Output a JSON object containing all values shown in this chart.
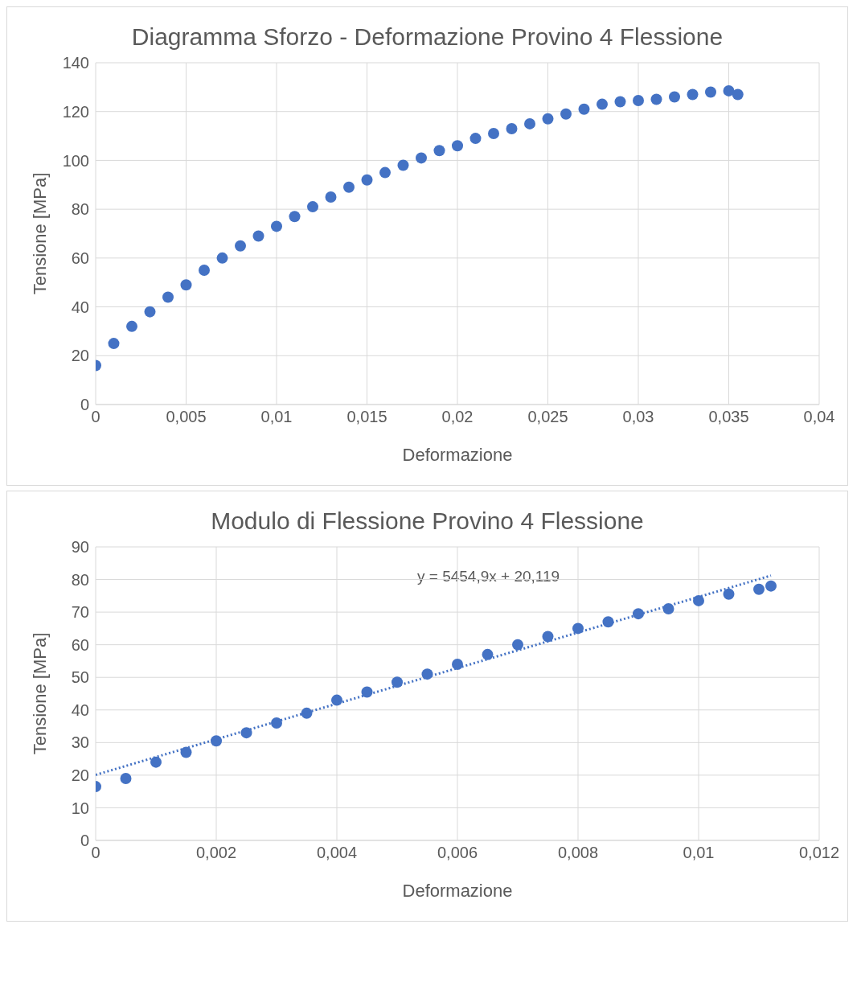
{
  "chart_data": [
    {
      "type": "scatter",
      "title": "Diagramma Sforzo - Deformazione Provino 4 Flessione",
      "xlabel": "Deformazione",
      "ylabel": "Tensione [MPa]",
      "xlim": [
        0,
        0.04
      ],
      "ylim": [
        0,
        140
      ],
      "xticks": [
        0,
        {
          "value": 0.005,
          "label": "0,005"
        },
        {
          "value": 0.01,
          "label": "0,01"
        },
        {
          "value": 0.015,
          "label": "0,015"
        },
        {
          "value": 0.02,
          "label": "0,02"
        },
        {
          "value": 0.025,
          "label": "0,025"
        },
        {
          "value": 0.03,
          "label": "0,03"
        },
        {
          "value": 0.035,
          "label": "0,035"
        },
        {
          "value": 0.04,
          "label": "0,04"
        }
      ],
      "yticks": [
        0,
        20,
        40,
        60,
        80,
        100,
        120,
        140
      ],
      "grid": true,
      "marker": "circle",
      "series": [
        {
          "color": "#4472c4",
          "x": [
            0,
            0.001,
            0.002,
            0.003,
            0.004,
            0.005,
            0.006,
            0.007,
            0.008,
            0.009,
            0.01,
            0.011,
            0.012,
            0.013,
            0.014,
            0.015,
            0.016,
            0.017,
            0.018,
            0.019,
            0.02,
            0.021,
            0.022,
            0.023,
            0.024,
            0.025,
            0.026,
            0.027,
            0.028,
            0.029,
            0.03,
            0.031,
            0.032,
            0.033,
            0.034,
            0.035,
            0.0355
          ],
          "values": [
            16,
            25,
            32,
            38,
            44,
            49,
            55,
            60,
            65,
            69,
            73,
            77,
            81,
            85,
            89,
            92,
            95,
            98,
            101,
            104,
            106,
            109,
            111,
            113,
            115,
            117,
            119,
            121,
            123,
            124,
            124.5,
            125,
            126,
            127,
            128,
            128.5,
            127
          ]
        }
      ]
    },
    {
      "type": "scatter",
      "title": "Modulo di Flessione Provino 4 Flessione",
      "xlabel": "Deformazione",
      "ylabel": "Tensione [MPa]",
      "xlim": [
        0,
        0.012
      ],
      "ylim": [
        0,
        90
      ],
      "xticks": [
        0,
        {
          "value": 0.002,
          "label": "0,002"
        },
        {
          "value": 0.004,
          "label": "0,004"
        },
        {
          "value": 0.006,
          "label": "0,006"
        },
        {
          "value": 0.008,
          "label": "0,008"
        },
        {
          "value": 0.01,
          "label": "0,01"
        },
        {
          "value": 0.012,
          "label": "0,012"
        }
      ],
      "yticks": [
        0,
        10,
        20,
        30,
        40,
        50,
        60,
        70,
        80,
        90
      ],
      "grid": true,
      "marker": "circle",
      "annotations": [
        "y = 5454,9x + 20,119"
      ],
      "series": [
        {
          "color": "#4472c4",
          "x": [
            0,
            0.0005,
            0.001,
            0.0015,
            0.002,
            0.0025,
            0.003,
            0.0035,
            0.004,
            0.0045,
            0.005,
            0.0055,
            0.006,
            0.0065,
            0.007,
            0.0075,
            0.008,
            0.0085,
            0.009,
            0.0095,
            0.01,
            0.0105,
            0.011,
            0.0112
          ],
          "values": [
            16.5,
            19,
            24,
            27,
            30.5,
            33,
            36,
            39,
            43,
            45.5,
            48.5,
            51,
            54,
            57,
            60,
            62.5,
            65,
            67,
            69.5,
            71,
            73.5,
            75.5,
            77,
            78
          ]
        },
        {
          "type": "line",
          "color": "#4472c4",
          "marker": "none",
          "line_style": "dotted",
          "x": [
            0,
            0.0112
          ],
          "values": [
            20.1,
            81.2
          ]
        }
      ]
    }
  ]
}
